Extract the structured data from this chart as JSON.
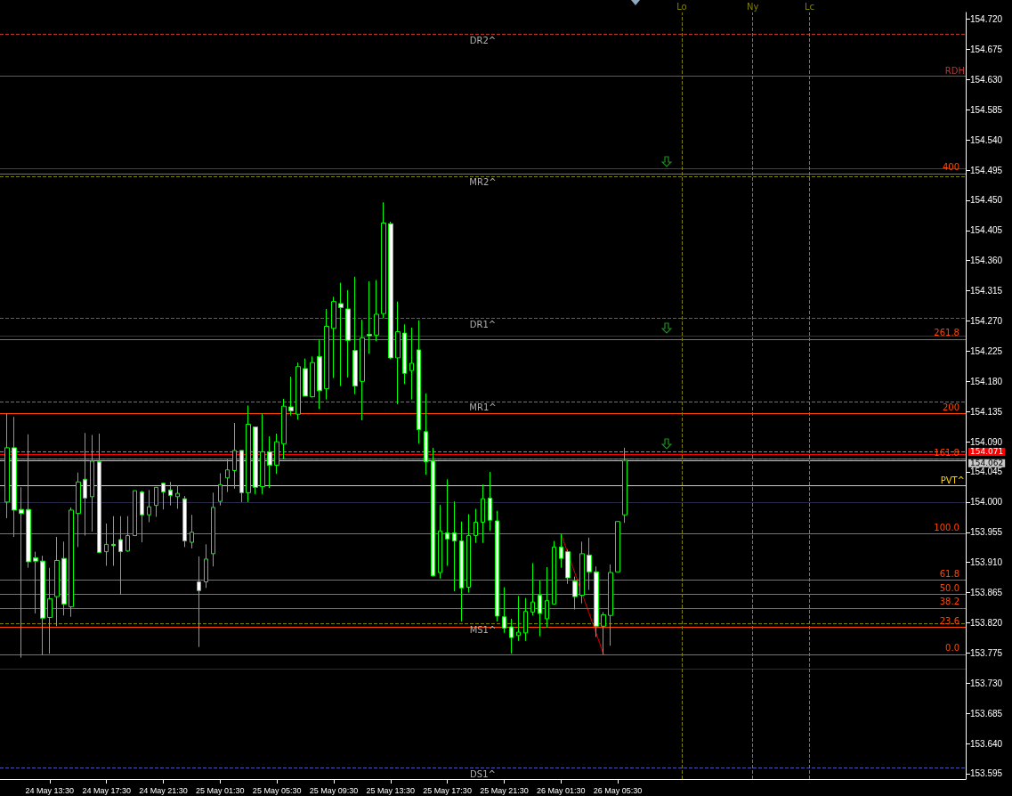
{
  "chart_data": {
    "type": "candlestick",
    "color": "#00ff00",
    "x": [
      "--05-24T10:30",
      "--05-24T11:00",
      "--05-24T11:30",
      "--05-24T12:00",
      "--05-24T12:30",
      "--05-24T13:00",
      "--05-24T13:30",
      "--05-24T14:00",
      "--05-24T14:30",
      "--05-24T15:00",
      "--05-24T15:30",
      "--05-24T16:00",
      "--05-24T16:30",
      "--05-24T17:00",
      "--05-24T17:30",
      "--05-24T18:00",
      "--05-24T18:30",
      "--05-24T19:00",
      "--05-24T19:30",
      "--05-24T20:00",
      "--05-24T20:30",
      "--05-24T21:00",
      "--05-24T21:30",
      "--05-24T22:00",
      "--05-24T22:30",
      "--05-24T23:00",
      "--05-24T23:30",
      "--05-25T00:00",
      "--05-25T00:30",
      "--05-25T01:00",
      "--05-25T01:30",
      "--05-25T02:00",
      "--05-25T02:30",
      "--05-25T03:00",
      "--05-25T03:30",
      "--05-25T04:00",
      "--05-25T04:30",
      "--05-25T05:00",
      "--05-25T05:30",
      "--05-25T06:00",
      "--05-25T06:30",
      "--05-25T07:00",
      "--05-25T07:30",
      "--05-25T08:00",
      "--05-25T08:30",
      "--05-25T09:00",
      "--05-25T09:30",
      "--05-25T10:00",
      "--05-25T10:30",
      "--05-25T11:00",
      "--05-25T11:30",
      "--05-25T12:00",
      "--05-25T12:30",
      "--05-25T13:00",
      "--05-25T13:30",
      "--05-25T14:00",
      "--05-25T14:30",
      "--05-25T15:00",
      "--05-25T15:30",
      "--05-25T16:00",
      "--05-25T16:30",
      "--05-25T17:00",
      "--05-25T17:30",
      "--05-25T18:00",
      "--05-25T18:30",
      "--05-25T19:00",
      "--05-25T19:30",
      "--05-25T20:00",
      "--05-25T20:30",
      "--05-25T21:00",
      "--05-25T21:30",
      "--05-25T22:00",
      "--05-25T22:30",
      "--05-25T23:00",
      "--05-25T23:30",
      "--05-26T00:00",
      "--05-26T00:30",
      "--05-26T01:00",
      "--05-26T01:30",
      "--05-26T02:00",
      "--05-26T02:30",
      "--05-26T03:00",
      "--05-26T03:30",
      "--05-26T04:00",
      "--05-26T04:30",
      "--05-26T05:00",
      "--05-26T05:30",
      "--05-26T06:00"
    ],
    "ohlc": [
      [
        154.0,
        154.132,
        153.976,
        154.081
      ],
      [
        154.081,
        154.127,
        153.948,
        153.988
      ],
      [
        153.989,
        154.022,
        153.768,
        153.983
      ],
      [
        153.989,
        154.101,
        153.902,
        153.911
      ],
      [
        153.917,
        153.926,
        153.834,
        153.912
      ],
      [
        153.912,
        153.92,
        153.772,
        153.827
      ],
      [
        153.828,
        153.902,
        153.774,
        153.856
      ],
      [
        153.859,
        153.948,
        153.815,
        153.913
      ],
      [
        153.916,
        153.941,
        153.831,
        153.848
      ],
      [
        153.844,
        153.992,
        153.829,
        153.988
      ],
      [
        153.983,
        154.044,
        153.933,
        154.03
      ],
      [
        154.034,
        154.103,
        153.95,
        154.006
      ],
      [
        154.008,
        154.1,
        153.956,
        154.061
      ],
      [
        154.06,
        154.102,
        153.924,
        153.925
      ],
      [
        153.926,
        153.968,
        153.905,
        153.937
      ],
      [
        153.937,
        153.979,
        153.905,
        153.935
      ],
      [
        153.944,
        153.979,
        153.862,
        153.926
      ],
      [
        153.927,
        153.979,
        153.926,
        153.95
      ],
      [
        153.95,
        154.017,
        153.95,
        154.017
      ],
      [
        154.015,
        154.017,
        153.94,
        153.981
      ],
      [
        153.981,
        154.018,
        153.97,
        153.993
      ],
      [
        153.995,
        154.022,
        153.978,
        154.022
      ],
      [
        154.028,
        154.029,
        153.989,
        154.015
      ],
      [
        154.018,
        154.03,
        153.995,
        154.01
      ],
      [
        154.008,
        154.025,
        153.99,
        154.013
      ],
      [
        154.005,
        154.009,
        153.933,
        153.942
      ],
      [
        153.94,
        153.981,
        153.931,
        153.955
      ],
      [
        153.881,
        153.919,
        153.784,
        153.868
      ],
      [
        153.881,
        153.937,
        153.872,
        153.915
      ],
      [
        153.923,
        154.014,
        153.904,
        153.992
      ],
      [
        154.001,
        154.043,
        153.995,
        154.026
      ],
      [
        154.036,
        154.064,
        154.015,
        154.048
      ],
      [
        154.047,
        154.118,
        154.02,
        154.077
      ],
      [
        154.077,
        154.077,
        154.0,
        154.014
      ],
      [
        154.014,
        154.144,
        154.0,
        154.116
      ],
      [
        154.112,
        154.112,
        154.012,
        154.022
      ],
      [
        154.023,
        154.132,
        154.012,
        154.075
      ],
      [
        154.075,
        154.098,
        154.021,
        154.055
      ],
      [
        154.055,
        154.102,
        154.042,
        154.09
      ],
      [
        154.087,
        154.154,
        154.064,
        154.143
      ],
      [
        154.142,
        154.187,
        154.129,
        154.136
      ],
      [
        154.131,
        154.208,
        154.123,
        154.202
      ],
      [
        154.199,
        154.214,
        154.158,
        154.158
      ],
      [
        154.157,
        154.217,
        154.156,
        154.208
      ],
      [
        154.217,
        154.242,
        154.139,
        154.166
      ],
      [
        154.169,
        154.288,
        154.153,
        154.262
      ],
      [
        154.259,
        154.306,
        154.185,
        154.299
      ],
      [
        154.296,
        154.327,
        154.173,
        154.29
      ],
      [
        154.288,
        154.316,
        154.186,
        154.241
      ],
      [
        154.226,
        154.336,
        154.161,
        154.173
      ],
      [
        154.18,
        154.272,
        154.122,
        154.245
      ],
      [
        154.25,
        154.329,
        154.221,
        154.248
      ],
      [
        154.249,
        154.331,
        154.24,
        154.28
      ],
      [
        154.281,
        154.447,
        154.274,
        154.416
      ],
      [
        154.415,
        154.418,
        154.213,
        154.215
      ],
      [
        154.215,
        154.299,
        154.146,
        154.254
      ],
      [
        154.252,
        154.265,
        154.176,
        154.192
      ],
      [
        154.196,
        154.26,
        154.153,
        154.207
      ],
      [
        154.227,
        154.271,
        154.087,
        154.108
      ],
      [
        154.105,
        154.162,
        154.041,
        154.06
      ],
      [
        154.061,
        154.081,
        153.889,
        153.89
      ],
      [
        153.895,
        153.996,
        153.886,
        153.957
      ],
      [
        153.954,
        154.034,
        153.905,
        153.945
      ],
      [
        153.954,
        154.001,
        153.867,
        153.942
      ],
      [
        153.942,
        153.971,
        153.822,
        153.872
      ],
      [
        153.873,
        153.982,
        153.865,
        153.95
      ],
      [
        153.95,
        153.99,
        153.939,
        153.97
      ],
      [
        153.97,
        154.026,
        153.939,
        154.005
      ],
      [
        154.006,
        154.045,
        153.957,
        153.973
      ],
      [
        153.972,
        153.987,
        153.822,
        153.83
      ],
      [
        153.829,
        153.873,
        153.805,
        153.812
      ],
      [
        153.814,
        153.826,
        153.774,
        153.798
      ],
      [
        153.801,
        153.86,
        153.793,
        153.806
      ],
      [
        153.805,
        153.857,
        153.793,
        153.837
      ],
      [
        153.836,
        153.909,
        153.831,
        153.851
      ],
      [
        153.861,
        153.883,
        153.8,
        153.834
      ],
      [
        153.826,
        153.903,
        153.813,
        153.853
      ],
      [
        153.848,
        153.942,
        153.848,
        153.933
      ],
      [
        153.933,
        153.953,
        153.902,
        153.916
      ],
      [
        153.926,
        153.929,
        153.878,
        153.887
      ],
      [
        153.882,
        153.889,
        153.84,
        153.859
      ],
      [
        153.861,
        153.941,
        153.849,
        153.923
      ],
      [
        153.921,
        153.947,
        153.869,
        153.896
      ],
      [
        153.896,
        153.904,
        153.799,
        153.815
      ],
      [
        153.815,
        153.836,
        153.773,
        153.832
      ],
      [
        153.831,
        153.907,
        153.786,
        153.895
      ],
      [
        153.896,
        153.971,
        153.896,
        153.971
      ],
      [
        153.981,
        154.081,
        153.969,
        154.062
      ]
    ],
    "colors": [
      "#000000",
      "#ffffff",
      "#ffffff",
      "#ffffff",
      "#ffffff",
      "#ffffff",
      "#000000",
      "#000000",
      "#ffffff",
      "#000000",
      "#000000",
      "#ffffff",
      "#000000",
      "#ffffff",
      "#000000",
      "#ffffff",
      "#ffffff",
      "#000000",
      "#000000",
      "#ffffff",
      "#000000",
      "#000000",
      "#ffffff",
      "#ffffff",
      "#000000",
      "#ffffff",
      "#000000",
      "#ffffff",
      "#000000",
      "#000000",
      "#000000",
      "#000000",
      "#000000",
      "#ffffff",
      "#000000",
      "#ffffff",
      "#000000",
      "#ffffff",
      "#000000",
      "#000000",
      "#ffffff",
      "#000000",
      "#ffffff",
      "#000000",
      "#ffffff",
      "#000000",
      "#000000",
      "#ffffff",
      "#ffffff",
      "#ffffff",
      "#000000",
      "#ffffff",
      "#000000",
      "#000000",
      "#ffffff",
      "#000000",
      "#ffffff",
      "#000000",
      "#ffffff",
      "#ffffff",
      "#ffffff",
      "#000000",
      "#ffffff",
      "#ffffff",
      "#ffffff",
      "#000000",
      "#000000",
      "#000000",
      "#ffffff",
      "#ffffff",
      "#ffffff",
      "#ffffff",
      "#000000",
      "#000000",
      "#000000",
      "#ffffff",
      "#000000",
      "#000000",
      "#ffffff",
      "#ffffff",
      "#ffffff",
      "#000000",
      "#ffffff",
      "#ffffff",
      "#000000",
      "#000000",
      "#000000",
      "#000000"
    ],
    "series": [
      {
        "type": "line",
        "x": [
          "--05-26T01:30",
          "--05-26T04:30"
        ],
        "values": [
          153.953,
          153.773
        ],
        "color": "#ff0000",
        "line_style": "dotted",
        "marker": "none"
      }
    ],
    "xlim": [
      "--05-24T10:00",
      "--05-27T06:00"
    ],
    "xticks": [
      {
        "value": "--05-24T13:30",
        "label": "24 May 13:30"
      },
      {
        "value": "--05-24T17:30",
        "label": "24 May 17:30"
      },
      {
        "value": "--05-24T21:30",
        "label": "24 May 21:30"
      },
      {
        "value": "--05-25T01:30",
        "label": "25 May 01:30"
      },
      {
        "value": "--05-25T05:30",
        "label": "25 May 05:30"
      },
      {
        "value": "--05-25T09:30",
        "label": "25 May 09:30"
      },
      {
        "value": "--05-25T13:30",
        "label": "25 May 13:30"
      },
      {
        "value": "--05-25T17:30",
        "label": "25 May 17:30"
      },
      {
        "value": "--05-25T21:30",
        "label": "25 May 21:30"
      },
      {
        "value": "--05-26T01:30",
        "label": "26 May 01:30"
      },
      {
        "value": "--05-26T05:30",
        "label": "26 May 05:30"
      }
    ],
    "ylim": [
      153.587,
      154.73
    ],
    "yticks": [
      {
        "value": 154.72,
        "label": "154.720"
      },
      154.675,
      {
        "value": 154.63,
        "label": "154.630"
      },
      154.585,
      {
        "value": 154.54,
        "label": "154.540"
      },
      154.495,
      {
        "value": 154.45,
        "label": "154.450"
      },
      154.405,
      {
        "value": 154.36,
        "label": "154.360"
      },
      154.315,
      {
        "value": 154.27,
        "label": "154.270"
      },
      154.225,
      {
        "value": 154.18,
        "label": "154.180"
      },
      154.135,
      {
        "value": 154.09,
        "label": "154.090"
      },
      154.045,
      {
        "value": 154,
        "label": "154.000"
      },
      153.955,
      {
        "value": 153.91,
        "label": "153.910"
      },
      153.865,
      {
        "value": 153.82,
        "label": "153.820"
      },
      153.775,
      {
        "value": 153.73,
        "label": "153.730"
      },
      153.685,
      {
        "value": 153.64,
        "label": "153.640"
      },
      153.595
    ],
    "ref_lines": [
      {
        "axis": "y",
        "value": 154.698,
        "label": "DR2^",
        "color": "#c0392b",
        "line_style": "dashed"
      },
      {
        "axis": "y",
        "value": 154.635,
        "label": "RDH",
        "color": "#b03a3a"
      },
      {
        "axis": "y",
        "value": 154.498,
        "color": "#3a4a2a"
      },
      {
        "axis": "y",
        "value": 154.49,
        "color": "#ff4500"
      },
      {
        "axis": "y",
        "value": 154.486,
        "label": "MR2^",
        "color": "#808000",
        "line_style": "dashed"
      },
      {
        "axis": "y",
        "value": 154.274,
        "label": "DR1^",
        "color": "#c0392b",
        "line_style": "dashed"
      },
      {
        "axis": "y",
        "value": 154.248,
        "color": "#4a3020"
      },
      {
        "axis": "y",
        "value": 154.243,
        "color": "#ff4500"
      },
      {
        "axis": "y",
        "value": 154.15,
        "label": "MR1^",
        "color": "#808000",
        "line_style": "dashed"
      },
      {
        "axis": "y",
        "value": 154.132,
        "color": "#ff4500"
      },
      {
        "axis": "y",
        "value": 154.075,
        "color": "#32cd32",
        "line_style": "dashed"
      },
      {
        "axis": "y",
        "value": 154.064,
        "color": "#ff4500"
      },
      {
        "axis": "y",
        "value": 154.071,
        "label": "154.071",
        "color": "#ff0000"
      },
      {
        "axis": "y",
        "value": 154.062,
        "label": "154.062",
        "color": "#c8c8c8"
      },
      {
        "axis": "y",
        "value": 154.064,
        "color": "#32cd32",
        "line_style": "dashed"
      },
      {
        "axis": "y",
        "value": 154.025,
        "label": "PVT^",
        "color": "#ffd700"
      },
      {
        "axis": "y",
        "value": 154.0,
        "color": "#2a2a48"
      },
      {
        "axis": "y",
        "value": 153.953,
        "color": "#ff4500"
      },
      {
        "axis": "y",
        "value": 153.884,
        "color": "#ff4500"
      },
      {
        "axis": "y",
        "value": 153.863,
        "color": "#ff4500"
      },
      {
        "axis": "y",
        "value": 153.842,
        "color": "#ff4500"
      },
      {
        "axis": "y",
        "value": 153.814,
        "color": "#ff4500"
      },
      {
        "axis": "y",
        "value": 153.819,
        "label": "MS1^",
        "color": "#808000",
        "line_style": "dashed"
      },
      {
        "axis": "y",
        "value": 153.773,
        "color": "#ff4500"
      },
      {
        "axis": "y",
        "value": 153.751,
        "color": "#3a2a20"
      },
      {
        "axis": "y",
        "value": 153.604,
        "label": "DS1^",
        "color": "#5050b0",
        "line_style": "dashed"
      },
      {
        "axis": "x",
        "value": "--05-26T10:00",
        "label": "Lo",
        "color": "#808000",
        "line_style": "dashed"
      },
      {
        "axis": "x",
        "value": "--05-26T15:00",
        "label": "Ny",
        "color": "#808000",
        "line_style": "dashed"
      },
      {
        "axis": "x",
        "value": "--05-26T19:00",
        "label": "Lc",
        "color": "#808000",
        "line_style": "dashed"
      }
    ],
    "annotations": [
      {
        "text": "400",
        "x": "--05-27T06:00",
        "y": 154.49
      },
      {
        "text": "261.8",
        "x": "--05-27T06:00",
        "y": 154.243
      },
      {
        "text": "200",
        "x": "--05-27T06:00",
        "y": 154.132
      },
      {
        "text": "161.8",
        "x": "--05-27T06:00",
        "y": 154.064
      },
      {
        "text": "100.0",
        "x": "--05-27T06:00",
        "y": 153.953
      },
      {
        "text": "61.8",
        "x": "--05-27T06:00",
        "y": 153.884
      },
      {
        "text": "50.0",
        "x": "--05-27T06:00",
        "y": 153.863
      },
      {
        "text": "38.2",
        "x": "--05-27T06:00",
        "y": 153.842
      },
      {
        "text": "23.6",
        "x": "--05-27T06:00",
        "y": 153.814
      },
      {
        "text": "0.0",
        "x": "--05-27T06:00",
        "y": 153.773
      }
    ]
  }
}
